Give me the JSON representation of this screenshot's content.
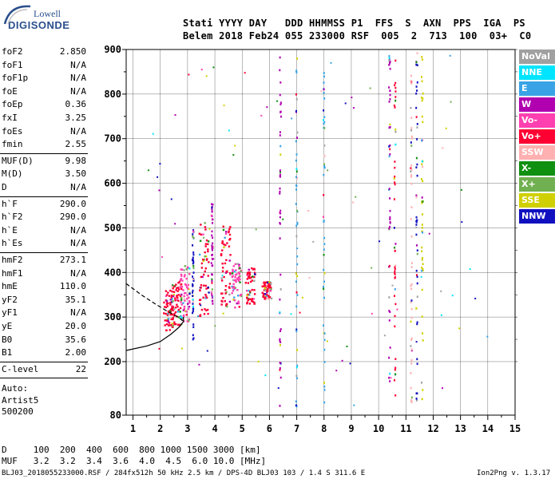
{
  "logo": {
    "top": "Lowell",
    "main": "DIGISONDE"
  },
  "header": {
    "line1": "Stati YYYY DAY   DDD HHMMSS P1  FFS  S  AXN  PPS  IGA  PS",
    "line2": "Belem 2018 Feb24 055 233000 RSF  005  2  713  100  03+  C0"
  },
  "params": [
    {
      "name": "foF2",
      "value": "2.850"
    },
    {
      "name": "foF1",
      "value": "N/A"
    },
    {
      "name": "foF1p",
      "value": "N/A"
    },
    {
      "name": "foE",
      "value": "N/A"
    },
    {
      "name": "foEp",
      "value": "0.36"
    },
    {
      "name": "fxI",
      "value": "3.25"
    },
    {
      "name": "foEs",
      "value": "N/A"
    },
    {
      "name": "fmin",
      "value": "2.55"
    },
    {
      "name": "MUF(D)",
      "value": "9.98"
    },
    {
      "name": "M(D)",
      "value": "3.50"
    },
    {
      "name": "D",
      "value": "N/A"
    },
    {
      "name": "h`F",
      "value": "290.0"
    },
    {
      "name": "h`F2",
      "value": "290.0"
    },
    {
      "name": "h`E",
      "value": "N/A"
    },
    {
      "name": "h`Es",
      "value": "N/A"
    },
    {
      "name": "hmF2",
      "value": "273.1"
    },
    {
      "name": "hmF1",
      "value": "N/A"
    },
    {
      "name": "hmE",
      "value": "110.0"
    },
    {
      "name": "yF2",
      "value": "35.1"
    },
    {
      "name": "yF1",
      "value": "N/A"
    },
    {
      "name": "yE",
      "value": "20.0"
    },
    {
      "name": "B0",
      "value": "35.6"
    },
    {
      "name": "B1",
      "value": "2.00"
    },
    {
      "name": "C-level",
      "value": "22"
    }
  ],
  "auto_lines": [
    "Auto:",
    "Artist5",
    "500200"
  ],
  "legend": [
    {
      "label": "NoVal",
      "color": "#a0a0a0"
    },
    {
      "label": "NNE",
      "color": "#00e5ff"
    },
    {
      "label": "E",
      "color": "#3aa3e6"
    },
    {
      "label": "W",
      "color": "#b000b0"
    },
    {
      "label": "Vo-",
      "color": "#ff40b0"
    },
    {
      "label": "Vo+",
      "color": "#ff0033"
    },
    {
      "label": "SSW",
      "color": "#ffb0b0"
    },
    {
      "label": "X-",
      "color": "#109010"
    },
    {
      "label": "X+",
      "color": "#70b050"
    },
    {
      "label": "SSE",
      "color": "#d0d000"
    },
    {
      "label": "NNW",
      "color": "#1010c0"
    }
  ],
  "footer": {
    "d_line": "D     100  200  400  600  800 1000 1500 3000 [km]",
    "muf_line": "MUF   3.2  3.2  3.4  3.6  4.0  4.5  6.0 10.0 [MHz]",
    "file_line": "BLJ03_2018055233000.RSF / 284fx512h 50 kHz 2.5 km / DPS-4D BLJ03 103 / 1.4 S 311.6 E",
    "version": "Ion2Png v. 1.3.17"
  },
  "chart_data": {
    "type": "scatter",
    "title": "",
    "xlabel": "",
    "ylabel": "",
    "xlim": [
      0.75,
      15
    ],
    "ylim": [
      80,
      900
    ],
    "x_ticks": [
      1,
      2,
      3,
      4,
      5,
      6,
      7,
      8,
      9,
      10,
      11,
      12,
      13,
      14,
      15
    ],
    "y_ticks": [
      80,
      200,
      300,
      400,
      500,
      600,
      700,
      800,
      900
    ],
    "grid": true,
    "legend_position": "right",
    "traces": [
      {
        "name": "profile",
        "style": "solid",
        "x": [
          0.75,
          1.5,
          2.0,
          2.4,
          2.7,
          2.85,
          2.85
        ],
        "y": [
          225,
          235,
          245,
          262,
          278,
          290,
          300
        ]
      },
      {
        "name": "profile-extrapolation",
        "style": "dashed",
        "x": [
          0.75,
          1.3,
          1.8,
          2.2,
          2.5,
          2.7,
          2.85
        ],
        "y": [
          375,
          350,
          330,
          315,
          305,
          298,
          290
        ]
      }
    ],
    "columns": [
      {
        "x": 2.3,
        "y_from": 270,
        "y_to": 360,
        "color": "#ff0033",
        "dense": true
      },
      {
        "x": 2.6,
        "y_from": 280,
        "y_to": 380,
        "color": "#ff0033",
        "dense": true
      },
      {
        "x": 2.9,
        "y_from": 290,
        "y_to": 420,
        "color": "#ff40b0",
        "dense": true
      },
      {
        "x": 3.2,
        "y_from": 250,
        "y_to": 500,
        "color": "#1010c0",
        "dense": false
      },
      {
        "x": 3.6,
        "y_from": 300,
        "y_to": 520,
        "color": "#ff0033",
        "dense": true
      },
      {
        "x": 3.9,
        "y_from": 330,
        "y_to": 560,
        "color": "#b000b0",
        "dense": false
      },
      {
        "x": 4.4,
        "y_from": 320,
        "y_to": 510,
        "color": "#ff0033",
        "dense": true
      },
      {
        "x": 4.8,
        "y_from": 320,
        "y_to": 420,
        "color": "#ff40b0",
        "dense": true
      },
      {
        "x": 5.3,
        "y_from": 330,
        "y_to": 410,
        "color": "#ff0033",
        "dense": true
      },
      {
        "x": 5.9,
        "y_from": 340,
        "y_to": 380,
        "color": "#ff0033",
        "dense": true
      },
      {
        "x": 6.4,
        "y_from": 100,
        "y_to": 900,
        "color": "#b000b0",
        "dense": false
      },
      {
        "x": 7.0,
        "y_from": 100,
        "y_to": 900,
        "color": "#3aa3e6",
        "dense": false
      },
      {
        "x": 8.0,
        "y_from": 100,
        "y_to": 900,
        "color": "#3aa3e6",
        "dense": false
      },
      {
        "x": 10.4,
        "y_from": 100,
        "y_to": 900,
        "color": "#b000b0",
        "dense": false
      },
      {
        "x": 10.6,
        "y_from": 100,
        "y_to": 900,
        "color": "#ff0033",
        "dense": false
      },
      {
        "x": 11.4,
        "y_from": 100,
        "y_to": 900,
        "color": "#1010c0",
        "dense": false
      },
      {
        "x": 11.6,
        "y_from": 100,
        "y_to": 900,
        "color": "#d0d000",
        "dense": false
      },
      {
        "x": 11.2,
        "y_from": 100,
        "y_to": 900,
        "color": "#ffb0b0",
        "dense": false
      }
    ]
  }
}
